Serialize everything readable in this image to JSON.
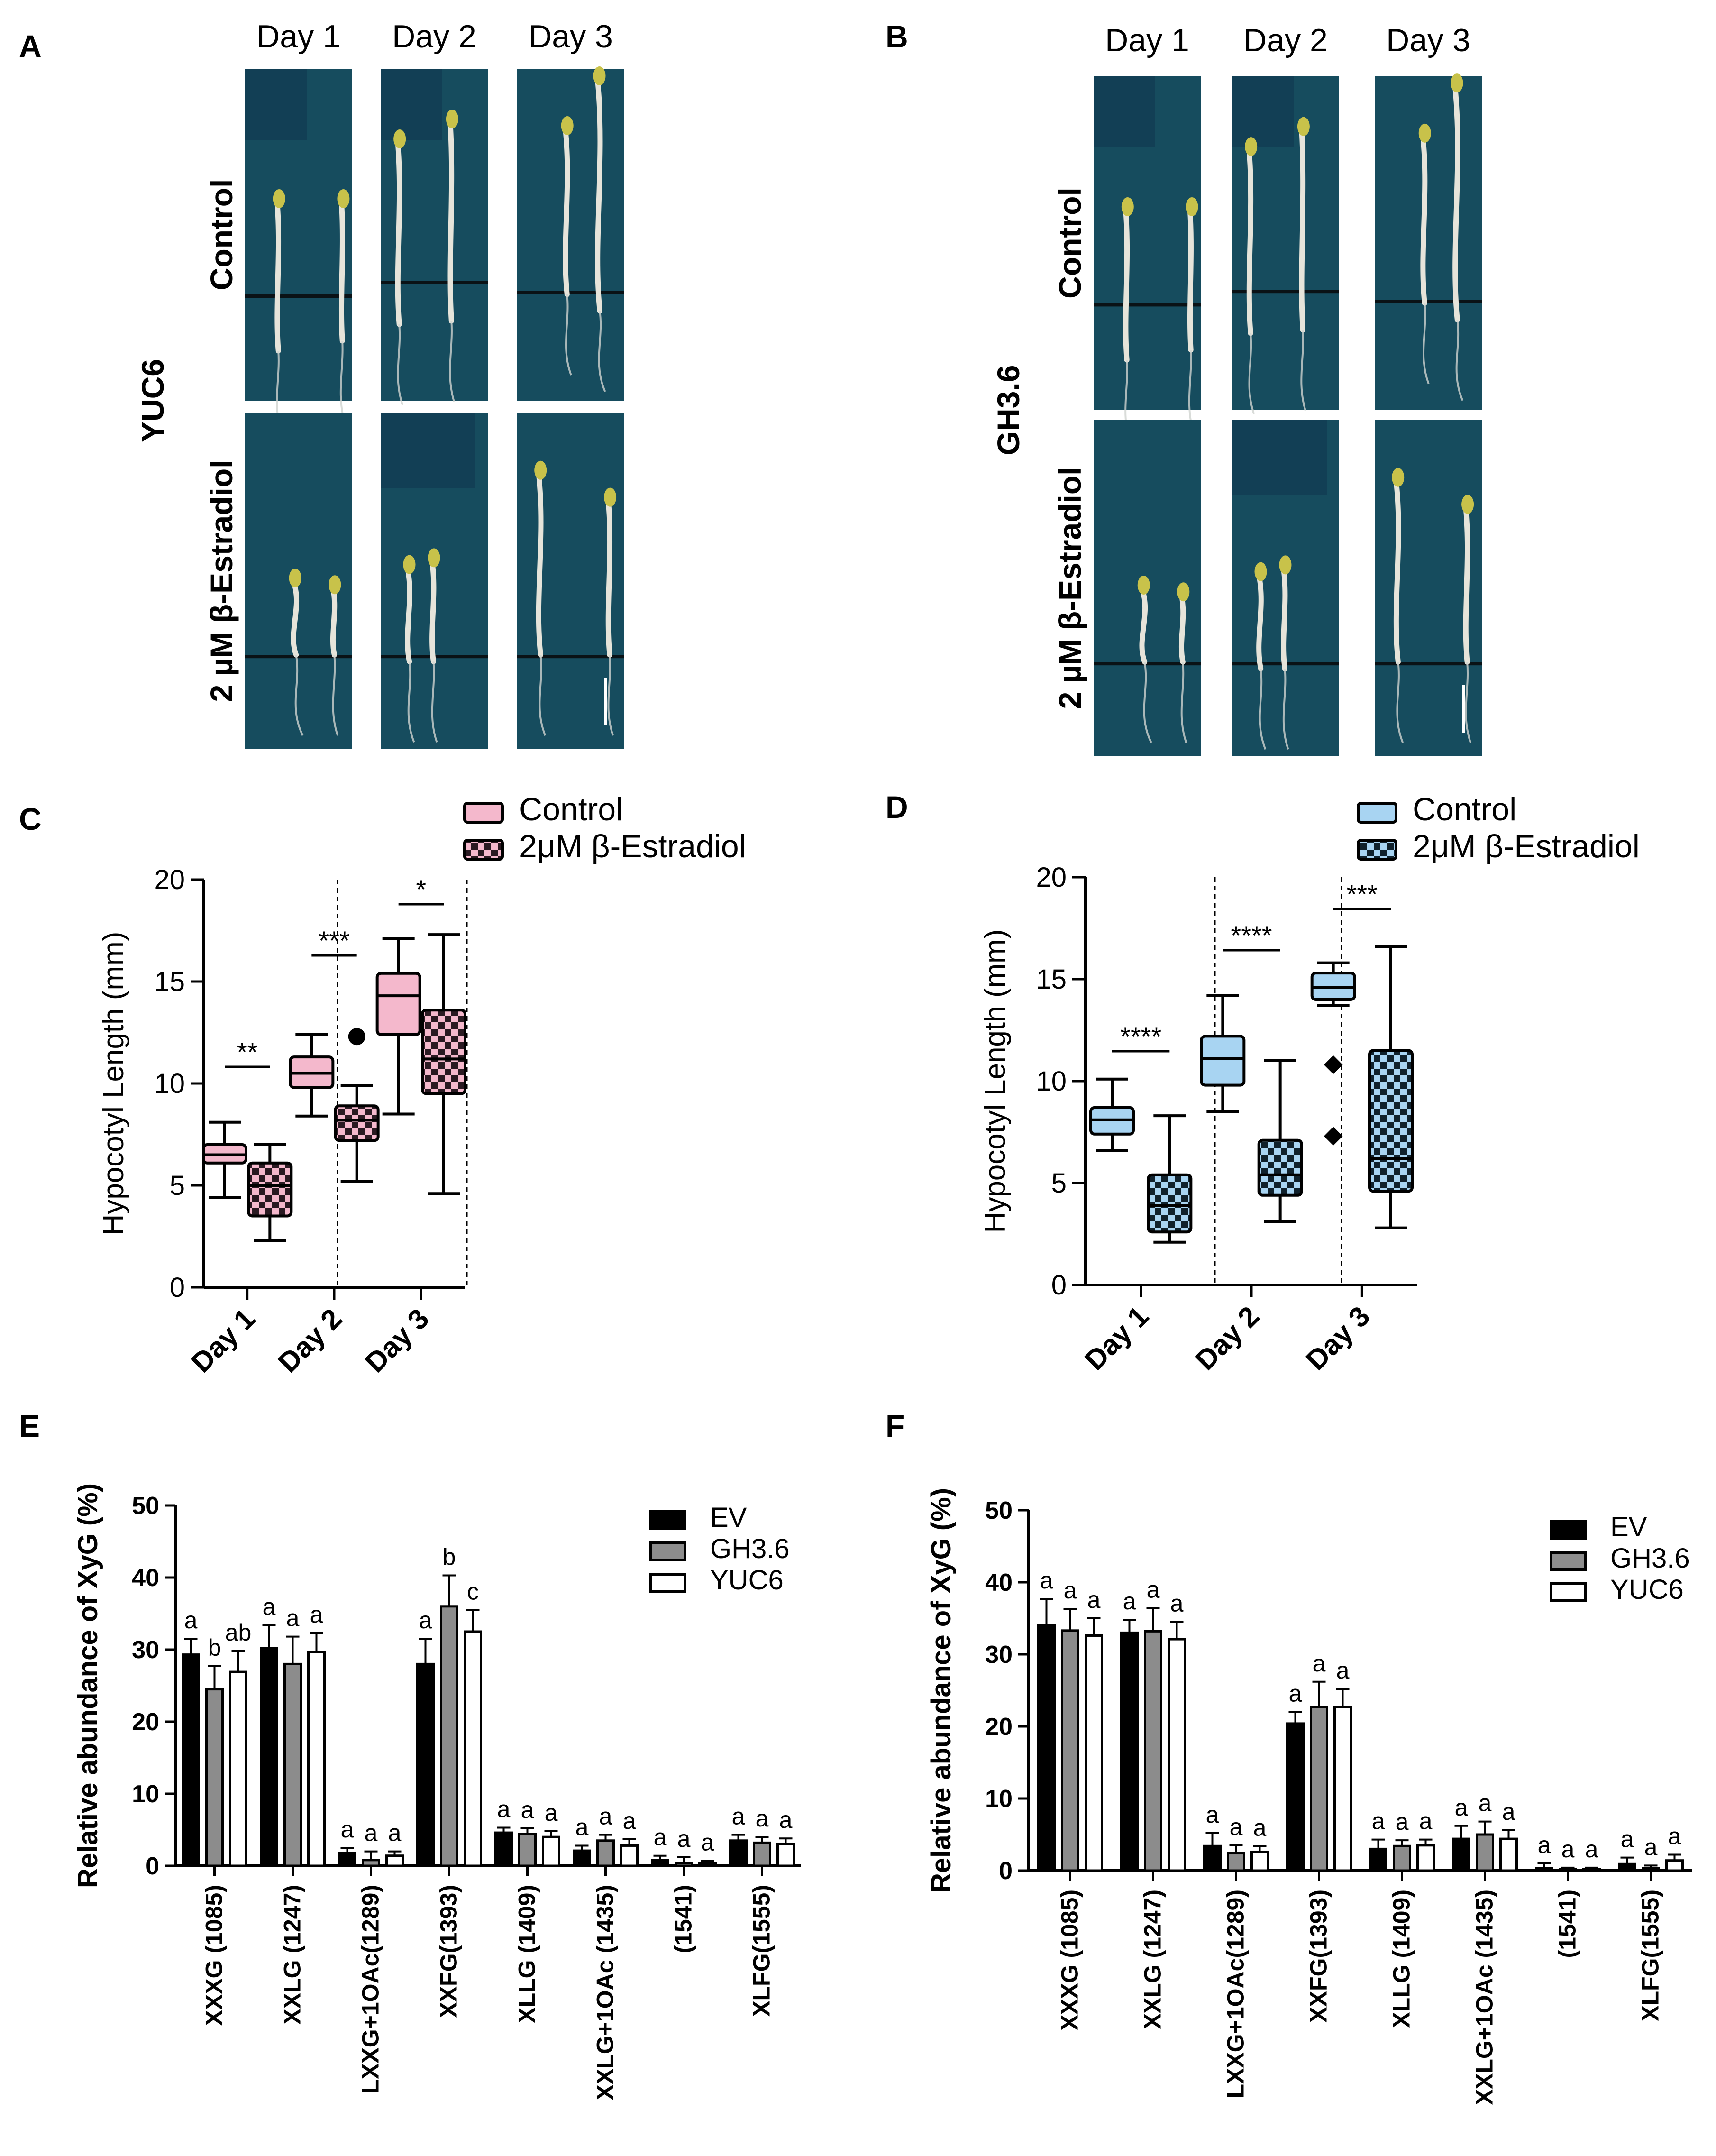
{
  "figure": {
    "panel_labels": [
      "A",
      "B",
      "C",
      "D",
      "E",
      "F"
    ],
    "photo_panels": [
      {
        "panel": "A",
        "gene": "YUC6",
        "columns": [
          "Day 1",
          "Day 2",
          "Day 3"
        ],
        "rows": [
          "Control",
          "2 µM β-Estradiol"
        ]
      },
      {
        "panel": "B",
        "gene": "GH3.6",
        "columns": [
          "Day 1",
          "Day 2",
          "Day 3"
        ],
        "rows": [
          "Control",
          "2 µM β-Estradiol"
        ]
      }
    ],
    "colors": {
      "plate": "#164c5e",
      "plate_dark": "#123f55",
      "seedling": "#e6e4da",
      "cotyledon": "#c8c24a",
      "pink": "#f4b8cc",
      "blue": "#a8d4f2",
      "bar_ev": "#000000",
      "bar_gh36": "#8c8c8c",
      "bar_yuc6": "#ffffff"
    }
  },
  "chart_data": [
    {
      "panel": "C",
      "type": "box",
      "ylabel": "Hypocotyl Length (mm)",
      "ylim": [
        0,
        20
      ],
      "yticks": [
        0,
        5,
        10,
        15,
        20
      ],
      "categories": [
        "Day 1",
        "Day 2",
        "Day 3"
      ],
      "legend": [
        "Control",
        "2μM β-Estradiol"
      ],
      "series": [
        {
          "name": "Control",
          "fill": "pink",
          "pattern": "solid",
          "boxes": [
            {
              "min": 4.4,
              "q1": 6.1,
              "median": 6.5,
              "q3": 7.0,
              "max": 8.1,
              "outliers": []
            },
            {
              "min": 8.4,
              "q1": 9.8,
              "median": 10.5,
              "q3": 11.3,
              "max": 12.4,
              "outliers": []
            },
            {
              "min": 8.5,
              "q1": 12.4,
              "median": 14.3,
              "q3": 15.4,
              "max": 17.1,
              "outliers": []
            }
          ]
        },
        {
          "name": "2μM β-Estradiol",
          "fill": "pink",
          "pattern": "checker",
          "boxes": [
            {
              "min": 2.3,
              "q1": 3.5,
              "median": 5.0,
              "q3": 6.1,
              "max": 7.0,
              "outliers": []
            },
            {
              "min": 5.2,
              "q1": 7.2,
              "median": 8.2,
              "q3": 8.9,
              "max": 9.9,
              "outliers": [
                12.3
              ]
            },
            {
              "min": 4.6,
              "q1": 9.5,
              "median": 11.2,
              "q3": 13.6,
              "max": 17.3,
              "outliers": []
            }
          ]
        }
      ],
      "significance": [
        "**",
        "***",
        "*"
      ]
    },
    {
      "panel": "D",
      "type": "box",
      "ylabel": "Hypocotyl Length (mm)",
      "ylim": [
        0,
        20
      ],
      "yticks": [
        0,
        5,
        10,
        15,
        20
      ],
      "categories": [
        "Day 1",
        "Day 2",
        "Day 3"
      ],
      "legend": [
        "Control",
        "2μM β-Estradiol"
      ],
      "series": [
        {
          "name": "Control",
          "fill": "blue",
          "pattern": "solid",
          "boxes": [
            {
              "min": 6.6,
              "q1": 7.4,
              "median": 8.1,
              "q3": 8.7,
              "max": 10.1,
              "outliers": []
            },
            {
              "min": 8.5,
              "q1": 9.8,
              "median": 11.1,
              "q3": 12.2,
              "max": 14.2,
              "outliers": []
            },
            {
              "min": 13.7,
              "q1": 14.0,
              "median": 14.6,
              "q3": 15.3,
              "max": 15.8,
              "outliers": [
                10.8,
                7.3
              ]
            }
          ]
        },
        {
          "name": "2μM β-Estradiol",
          "fill": "blue",
          "pattern": "checker",
          "boxes": [
            {
              "min": 2.1,
              "q1": 2.6,
              "median": 3.9,
              "q3": 5.4,
              "max": 8.3,
              "outliers": []
            },
            {
              "min": 3.1,
              "q1": 4.4,
              "median": 5.4,
              "q3": 7.1,
              "max": 11.0,
              "outliers": []
            },
            {
              "min": 2.8,
              "q1": 4.6,
              "median": 6.2,
              "q3": 11.5,
              "max": 16.6,
              "outliers": []
            }
          ]
        }
      ],
      "significance": [
        "****",
        "****",
        "***"
      ]
    },
    {
      "panel": "E",
      "type": "bar",
      "ylabel": "Relative abundance of XyG (%)",
      "ylim": [
        0,
        50
      ],
      "yticks": [
        0,
        10,
        20,
        30,
        40,
        50
      ],
      "categories": [
        "XXXG (1085)",
        "XXLG (1247)",
        "LXXG+1OAc(1289)",
        "XXFG(1393)",
        "XLLG (1409)",
        "XXLG+1OAc (1435)",
        "(1541)",
        "XLFG(1555)"
      ],
      "legend": [
        "EV",
        "GH3.6",
        "YUC6"
      ],
      "series": [
        {
          "name": "EV",
          "values": [
            29.3,
            30.2,
            1.8,
            28.0,
            4.6,
            2.1,
            0.8,
            3.5
          ],
          "errors": [
            2.2,
            3.2,
            0.7,
            3.5,
            0.7,
            0.7,
            0.6,
            0.8
          ],
          "letters": [
            "a",
            "a",
            "a",
            "a",
            "a",
            "a",
            "a",
            "a"
          ]
        },
        {
          "name": "GH3.6",
          "values": [
            24.5,
            28.0,
            0.8,
            36.0,
            4.4,
            3.5,
            0.4,
            3.2
          ],
          "errors": [
            3.2,
            3.8,
            1.2,
            4.3,
            0.8,
            0.8,
            0.8,
            0.8
          ],
          "letters": [
            "b",
            "a",
            "a",
            "b",
            "a",
            "a",
            "a",
            "a"
          ]
        },
        {
          "name": "YUC6",
          "values": [
            26.9,
            29.7,
            1.4,
            32.5,
            4.0,
            2.8,
            0.3,
            3.0
          ],
          "errors": [
            2.9,
            2.6,
            0.6,
            3.0,
            0.8,
            0.9,
            0.4,
            0.8
          ],
          "letters": [
            "ab",
            "a",
            "a",
            "c",
            "a",
            "a",
            "a",
            "a"
          ]
        }
      ]
    },
    {
      "panel": "F",
      "type": "bar",
      "ylabel": "Relative abundance of XyG (%)",
      "ylim": [
        0,
        50
      ],
      "yticks": [
        0,
        10,
        20,
        30,
        40,
        50
      ],
      "categories": [
        "XXXG (1085)",
        "XXLG (1247)",
        "LXXG+1OAc(1289)",
        "XXFG(1393)",
        "XLLG (1409)",
        "XXLG+1OAc (1435)",
        "(1541)",
        "XLFG(1555)"
      ],
      "legend": [
        "EV",
        "GH3.6",
        "YUC6"
      ],
      "series": [
        {
          "name": "EV",
          "values": [
            34.1,
            33.0,
            3.4,
            20.4,
            3.0,
            4.4,
            0.3,
            0.9
          ],
          "errors": [
            3.6,
            1.8,
            1.8,
            1.6,
            1.3,
            1.8,
            0.7,
            0.9
          ],
          "letters": [
            "a",
            "a",
            "a",
            "a",
            "a",
            "a",
            "a",
            "a"
          ]
        },
        {
          "name": "GH3.6",
          "values": [
            33.3,
            33.2,
            2.4,
            22.7,
            3.4,
            5.0,
            0.2,
            0.3
          ],
          "errors": [
            3.0,
            3.2,
            1.1,
            3.5,
            0.8,
            1.8,
            0.2,
            0.4
          ],
          "letters": [
            "a",
            "a",
            "a",
            "a",
            "a",
            "a",
            "a",
            "a"
          ]
        },
        {
          "name": "YUC6",
          "values": [
            32.6,
            32.1,
            2.6,
            22.7,
            3.5,
            4.4,
            0.2,
            1.4
          ],
          "errors": [
            2.4,
            2.4,
            0.8,
            2.5,
            0.8,
            1.2,
            0.2,
            0.8
          ],
          "letters": [
            "a",
            "a",
            "a",
            "a",
            "a",
            "a",
            "a",
            "a"
          ]
        }
      ]
    }
  ]
}
